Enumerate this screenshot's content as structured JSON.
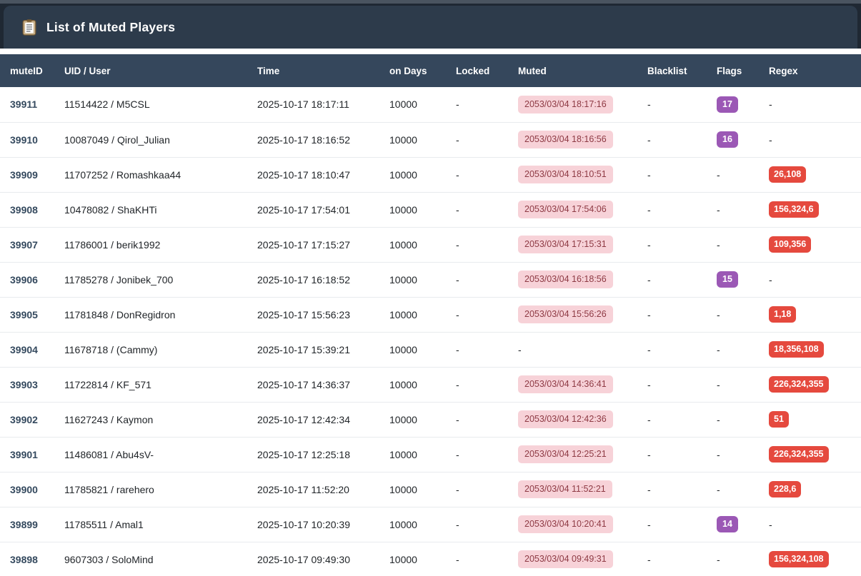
{
  "header": {
    "title": "List of Muted Players",
    "icon": "clipboard-icon"
  },
  "colors": {
    "header_bg": "#2d3b4b",
    "thead_bg": "#35475c",
    "muted_badge_bg": "#f7d2d8",
    "muted_badge_text": "#8e3a44",
    "flags_badge_bg": "#9b58b5",
    "regex_badge_bg": "#e5493e"
  },
  "table": {
    "columns": [
      {
        "key": "mute_id",
        "label": "muteID",
        "type": "id"
      },
      {
        "key": "uid_user",
        "label": "UID / User",
        "type": "text"
      },
      {
        "key": "time",
        "label": "Time",
        "type": "text"
      },
      {
        "key": "on_days",
        "label": "on Days",
        "type": "text"
      },
      {
        "key": "locked",
        "label": "Locked",
        "type": "text"
      },
      {
        "key": "muted",
        "label": "Muted",
        "type": "muted-badge"
      },
      {
        "key": "blacklist",
        "label": "Blacklist",
        "type": "text"
      },
      {
        "key": "flags",
        "label": "Flags",
        "type": "flags-badge"
      },
      {
        "key": "regex",
        "label": "Regex",
        "type": "regex-badge"
      }
    ],
    "rows": [
      {
        "mute_id": "39911",
        "uid_user": "11514422 / M5CSL",
        "time": "2025-10-17 18:17:11",
        "on_days": "10000",
        "locked": "-",
        "muted": "2053/03/04 18:17:16",
        "blacklist": "-",
        "flags": "17",
        "regex": "-"
      },
      {
        "mute_id": "39910",
        "uid_user": "10087049 / Qirol_Julian",
        "time": "2025-10-17 18:16:52",
        "on_days": "10000",
        "locked": "-",
        "muted": "2053/03/04 18:16:56",
        "blacklist": "-",
        "flags": "16",
        "regex": "-"
      },
      {
        "mute_id": "39909",
        "uid_user": "11707252 / Romashkaa44",
        "time": "2025-10-17 18:10:47",
        "on_days": "10000",
        "locked": "-",
        "muted": "2053/03/04 18:10:51",
        "blacklist": "-",
        "flags": "-",
        "regex": "26,108"
      },
      {
        "mute_id": "39908",
        "uid_user": "10478082 / ShaKHTi",
        "time": "2025-10-17 17:54:01",
        "on_days": "10000",
        "locked": "-",
        "muted": "2053/03/04 17:54:06",
        "blacklist": "-",
        "flags": "-",
        "regex": "156,324,6"
      },
      {
        "mute_id": "39907",
        "uid_user": "11786001 / berik1992",
        "time": "2025-10-17 17:15:27",
        "on_days": "10000",
        "locked": "-",
        "muted": "2053/03/04 17:15:31",
        "blacklist": "-",
        "flags": "-",
        "regex": "109,356"
      },
      {
        "mute_id": "39906",
        "uid_user": "11785278 / Jonibek_700",
        "time": "2025-10-17 16:18:52",
        "on_days": "10000",
        "locked": "-",
        "muted": "2053/03/04 16:18:56",
        "blacklist": "-",
        "flags": "15",
        "regex": "-"
      },
      {
        "mute_id": "39905",
        "uid_user": "11781848 / DonRegidron",
        "time": "2025-10-17 15:56:23",
        "on_days": "10000",
        "locked": "-",
        "muted": "2053/03/04 15:56:26",
        "blacklist": "-",
        "flags": "-",
        "regex": "1,18"
      },
      {
        "mute_id": "39904",
        "uid_user": "11678718 / (Cammy)",
        "time": "2025-10-17 15:39:21",
        "on_days": "10000",
        "locked": "-",
        "muted": "-",
        "blacklist": "-",
        "flags": "-",
        "regex": "18,356,108"
      },
      {
        "mute_id": "39903",
        "uid_user": "11722814 / KF_571",
        "time": "2025-10-17 14:36:37",
        "on_days": "10000",
        "locked": "-",
        "muted": "2053/03/04 14:36:41",
        "blacklist": "-",
        "flags": "-",
        "regex": "226,324,355"
      },
      {
        "mute_id": "39902",
        "uid_user": "11627243 / Kaymon",
        "time": "2025-10-17 12:42:34",
        "on_days": "10000",
        "locked": "-",
        "muted": "2053/03/04 12:42:36",
        "blacklist": "-",
        "flags": "-",
        "regex": "51"
      },
      {
        "mute_id": "39901",
        "uid_user": "11486081 / Abu4sV-",
        "time": "2025-10-17 12:25:18",
        "on_days": "10000",
        "locked": "-",
        "muted": "2053/03/04 12:25:21",
        "blacklist": "-",
        "flags": "-",
        "regex": "226,324,355"
      },
      {
        "mute_id": "39900",
        "uid_user": "11785821 / rarehero",
        "time": "2025-10-17 11:52:20",
        "on_days": "10000",
        "locked": "-",
        "muted": "2053/03/04 11:52:21",
        "blacklist": "-",
        "flags": "-",
        "regex": "228,6"
      },
      {
        "mute_id": "39899",
        "uid_user": "11785511 / Amal1",
        "time": "2025-10-17 10:20:39",
        "on_days": "10000",
        "locked": "-",
        "muted": "2053/03/04 10:20:41",
        "blacklist": "-",
        "flags": "14",
        "regex": "-"
      },
      {
        "mute_id": "39898",
        "uid_user": "9607303 / SoloMind",
        "time": "2025-10-17 09:49:30",
        "on_days": "10000",
        "locked": "-",
        "muted": "2053/03/04 09:49:31",
        "blacklist": "-",
        "flags": "-",
        "regex": "156,324,108"
      }
    ]
  }
}
